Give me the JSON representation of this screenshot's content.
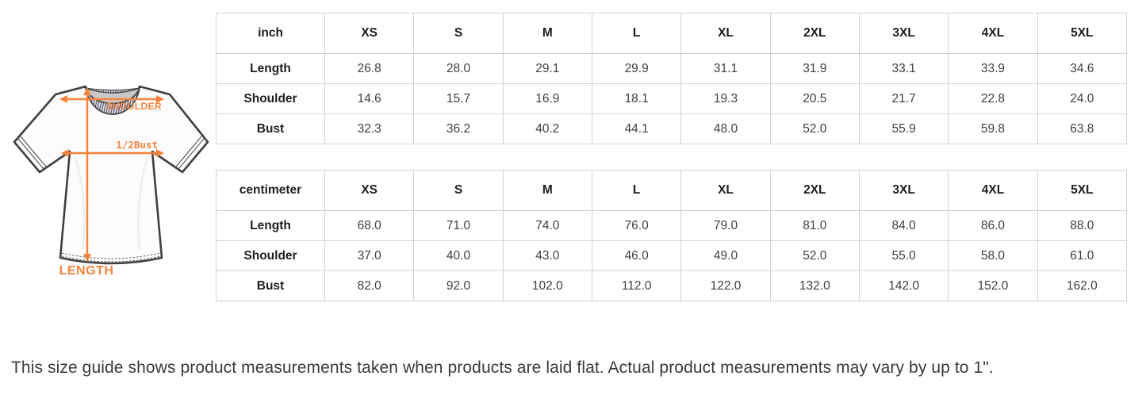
{
  "diagram": {
    "shoulder_label": "SHOULDER",
    "half_bust_label": "1/2Bust",
    "length_label": "LENGTH",
    "accent_color": "#f5823d",
    "outline_color": "#3f3f3f",
    "collar_rib_color": "#4d4d68"
  },
  "size_tables": [
    {
      "unit": "inch",
      "sizes": [
        "XS",
        "S",
        "M",
        "L",
        "XL",
        "2XL",
        "3XL",
        "4XL",
        "5XL"
      ],
      "rows": [
        {
          "label": "Length",
          "values": [
            "26.8",
            "28.0",
            "29.1",
            "29.9",
            "31.1",
            "31.9",
            "33.1",
            "33.9",
            "34.6"
          ]
        },
        {
          "label": "Shoulder",
          "values": [
            "14.6",
            "15.7",
            "16.9",
            "18.1",
            "19.3",
            "20.5",
            "21.7",
            "22.8",
            "24.0"
          ]
        },
        {
          "label": "Bust",
          "values": [
            "32.3",
            "36.2",
            "40.2",
            "44.1",
            "48.0",
            "52.0",
            "55.9",
            "59.8",
            "63.8"
          ]
        }
      ]
    },
    {
      "unit": "centimeter",
      "sizes": [
        "XS",
        "S",
        "M",
        "L",
        "XL",
        "2XL",
        "3XL",
        "4XL",
        "5XL"
      ],
      "rows": [
        {
          "label": "Length",
          "values": [
            "68.0",
            "71.0",
            "74.0",
            "76.0",
            "79.0",
            "81.0",
            "84.0",
            "86.0",
            "88.0"
          ]
        },
        {
          "label": "Shoulder",
          "values": [
            "37.0",
            "40.0",
            "43.0",
            "46.0",
            "49.0",
            "52.0",
            "55.0",
            "58.0",
            "61.0"
          ]
        },
        {
          "label": "Bust",
          "values": [
            "82.0",
            "92.0",
            "102.0",
            "112.0",
            "122.0",
            "132.0",
            "142.0",
            "152.0",
            "162.0"
          ]
        }
      ]
    }
  ],
  "footer": {
    "note": "This size guide shows product measurements taken when products are laid flat. Actual product measurements may vary by up to 1\"."
  }
}
